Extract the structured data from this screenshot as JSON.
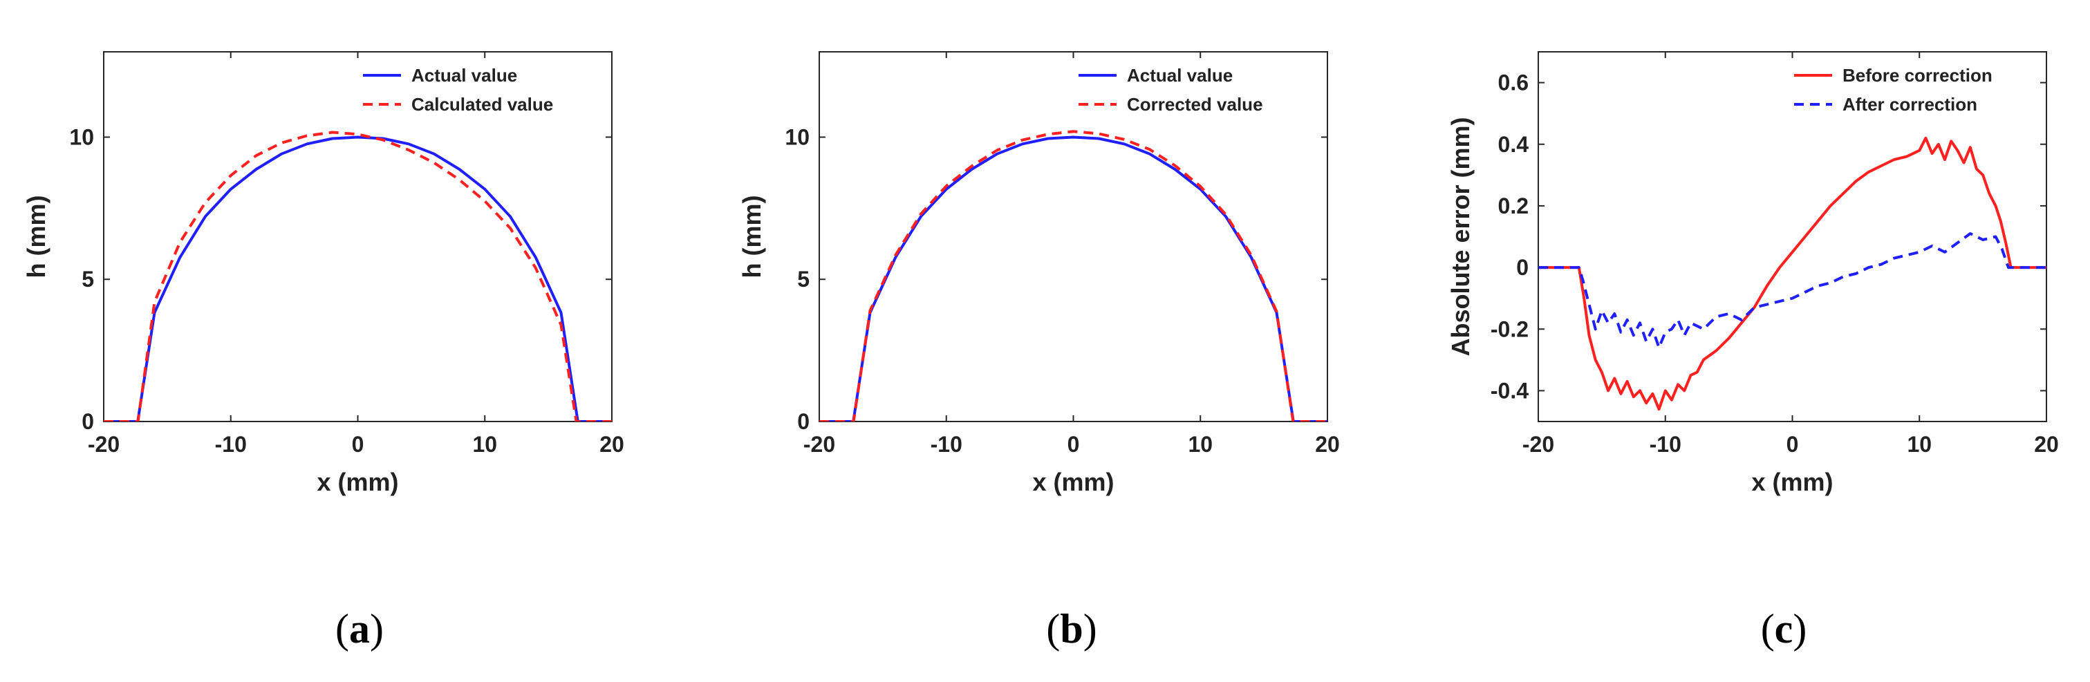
{
  "panels": [
    {
      "caption_letter": "a",
      "chart_data": {
        "type": "line",
        "xlabel": "x (mm)",
        "ylabel": "h (mm)",
        "xlim": [
          -20,
          20
        ],
        "ylim": [
          0,
          13
        ],
        "xticks": [
          -20,
          -10,
          0,
          10,
          20
        ],
        "yticks": [
          0,
          5,
          10
        ],
        "legend_position": "top-right",
        "grid": false,
        "series": [
          {
            "name": "Actual value",
            "color": "#1f1fff",
            "style": "solid",
            "x": [
              -20,
              -17.5,
              -17.32,
              -16,
              -14,
              -12,
              -10,
              -8,
              -6,
              -4,
              -2,
              0,
              2,
              4,
              6,
              8,
              10,
              12,
              14,
              16,
              17.32,
              17.5,
              20
            ],
            "y": [
              0,
              0,
              0,
              3.83,
              5.77,
              7.21,
              8.17,
              8.87,
              9.41,
              9.76,
              9.95,
              10,
              9.95,
              9.76,
              9.41,
              8.87,
              8.17,
              7.21,
              5.77,
              3.83,
              0,
              0,
              0
            ]
          },
          {
            "name": "Calculated value",
            "color": "#ff2020",
            "style": "dashed",
            "x": [
              -20,
              -17.5,
              -17.3,
              -16,
              -14,
              -12,
              -10,
              -8,
              -6,
              -4,
              -2,
              0,
              2,
              4,
              6,
              8,
              10,
              12,
              14,
              16,
              17.2,
              17.5,
              20
            ],
            "y": [
              0,
              0,
              0,
              4.2,
              6.3,
              7.7,
              8.65,
              9.35,
              9.8,
              10.05,
              10.17,
              10.1,
              9.9,
              9.55,
              9.1,
              8.5,
              7.75,
              6.8,
              5.4,
              3.4,
              0,
              0,
              0
            ]
          }
        ]
      }
    },
    {
      "caption_letter": "b",
      "chart_data": {
        "type": "line",
        "xlabel": "x (mm)",
        "ylabel": "h (mm)",
        "xlim": [
          -20,
          20
        ],
        "ylim": [
          0,
          13
        ],
        "xticks": [
          -20,
          -10,
          0,
          10,
          20
        ],
        "yticks": [
          0,
          5,
          10
        ],
        "legend_position": "top-right",
        "grid": false,
        "series": [
          {
            "name": "Actual value",
            "color": "#1f1fff",
            "style": "solid",
            "x": [
              -20,
              -17.5,
              -17.32,
              -16,
              -14,
              -12,
              -10,
              -8,
              -6,
              -4,
              -2,
              0,
              2,
              4,
              6,
              8,
              10,
              12,
              14,
              16,
              17.32,
              17.5,
              20
            ],
            "y": [
              0,
              0,
              0,
              3.83,
              5.77,
              7.21,
              8.17,
              8.87,
              9.41,
              9.76,
              9.95,
              10,
              9.95,
              9.76,
              9.41,
              8.87,
              8.17,
              7.21,
              5.77,
              3.83,
              0,
              0,
              0
            ]
          },
          {
            "name": "Corrected value",
            "color": "#ff2020",
            "style": "dashed",
            "x": [
              -20,
              -17.5,
              -17.3,
              -16,
              -14,
              -12,
              -10,
              -8,
              -6,
              -4,
              -2,
              0,
              2,
              4,
              6,
              8,
              10,
              12,
              14,
              16,
              17.3,
              17.5,
              20
            ],
            "y": [
              0,
              0,
              0,
              3.9,
              5.85,
              7.3,
              8.28,
              8.98,
              9.54,
              9.9,
              10.1,
              10.2,
              10.12,
              9.92,
              9.57,
              9.0,
              8.27,
              7.28,
              5.85,
              3.87,
              0,
              0,
              0
            ]
          }
        ]
      }
    },
    {
      "caption_letter": "c",
      "chart_data": {
        "type": "line",
        "xlabel": "x (mm)",
        "ylabel": "Absolute error (mm)",
        "xlim": [
          -20,
          20
        ],
        "ylim": [
          -0.5,
          0.7
        ],
        "xticks": [
          -20,
          -10,
          0,
          10,
          20
        ],
        "yticks": [
          -0.4,
          -0.2,
          0,
          0.2,
          0.4,
          0.6
        ],
        "legend_position": "top-right",
        "grid": false,
        "series": [
          {
            "name": "Before correction",
            "color": "#ff2020",
            "style": "solid",
            "x": [
              -20,
              -16.8,
              -16.4,
              -16,
              -15.5,
              -15,
              -14.5,
              -14,
              -13.5,
              -13,
              -12.5,
              -12,
              -11.5,
              -11,
              -10.5,
              -10,
              -9.5,
              -9,
              -8.5,
              -8,
              -7.5,
              -7,
              -6,
              -5,
              -4,
              -3,
              -2,
              -1,
              0,
              1,
              2,
              3,
              4,
              5,
              6,
              7,
              8,
              9,
              10,
              10.5,
              11,
              11.5,
              12,
              12.5,
              13,
              13.5,
              14,
              14.5,
              15,
              15.5,
              16,
              16.4,
              16.8,
              17.2,
              20
            ],
            "y": [
              0,
              0,
              -0.1,
              -0.22,
              -0.3,
              -0.34,
              -0.4,
              -0.36,
              -0.41,
              -0.37,
              -0.42,
              -0.4,
              -0.44,
              -0.41,
              -0.46,
              -0.4,
              -0.43,
              -0.38,
              -0.4,
              -0.35,
              -0.34,
              -0.3,
              -0.27,
              -0.23,
              -0.18,
              -0.13,
              -0.06,
              0.0,
              0.05,
              0.1,
              0.15,
              0.2,
              0.24,
              0.28,
              0.31,
              0.33,
              0.35,
              0.36,
              0.38,
              0.42,
              0.37,
              0.4,
              0.35,
              0.41,
              0.38,
              0.34,
              0.39,
              0.32,
              0.3,
              0.24,
              0.2,
              0.15,
              0.08,
              0,
              0
            ]
          },
          {
            "name": "After correction",
            "color": "#1f1fff",
            "style": "dashed",
            "x": [
              -20,
              -16.8,
              -16.5,
              -16,
              -15.5,
              -15,
              -14.5,
              -14,
              -13.5,
              -13,
              -12.5,
              -12,
              -11.5,
              -11,
              -10.5,
              -10,
              -9.5,
              -9,
              -8.5,
              -8,
              -7,
              -6,
              -5,
              -4,
              -3,
              -2,
              -1,
              0,
              1,
              2,
              3,
              4,
              5,
              6,
              7,
              8,
              9,
              10,
              11,
              12,
              13,
              14,
              15,
              16,
              16.5,
              17,
              20
            ],
            "y": [
              0,
              0,
              -0.04,
              -0.12,
              -0.2,
              -0.14,
              -0.18,
              -0.15,
              -0.21,
              -0.17,
              -0.22,
              -0.18,
              -0.24,
              -0.2,
              -0.26,
              -0.21,
              -0.2,
              -0.17,
              -0.22,
              -0.18,
              -0.2,
              -0.16,
              -0.15,
              -0.17,
              -0.13,
              -0.12,
              -0.11,
              -0.1,
              -0.08,
              -0.06,
              -0.05,
              -0.03,
              -0.02,
              0.0,
              0.01,
              0.03,
              0.04,
              0.05,
              0.07,
              0.05,
              0.08,
              0.11,
              0.09,
              0.1,
              0.06,
              0,
              0
            ]
          }
        ]
      }
    }
  ]
}
